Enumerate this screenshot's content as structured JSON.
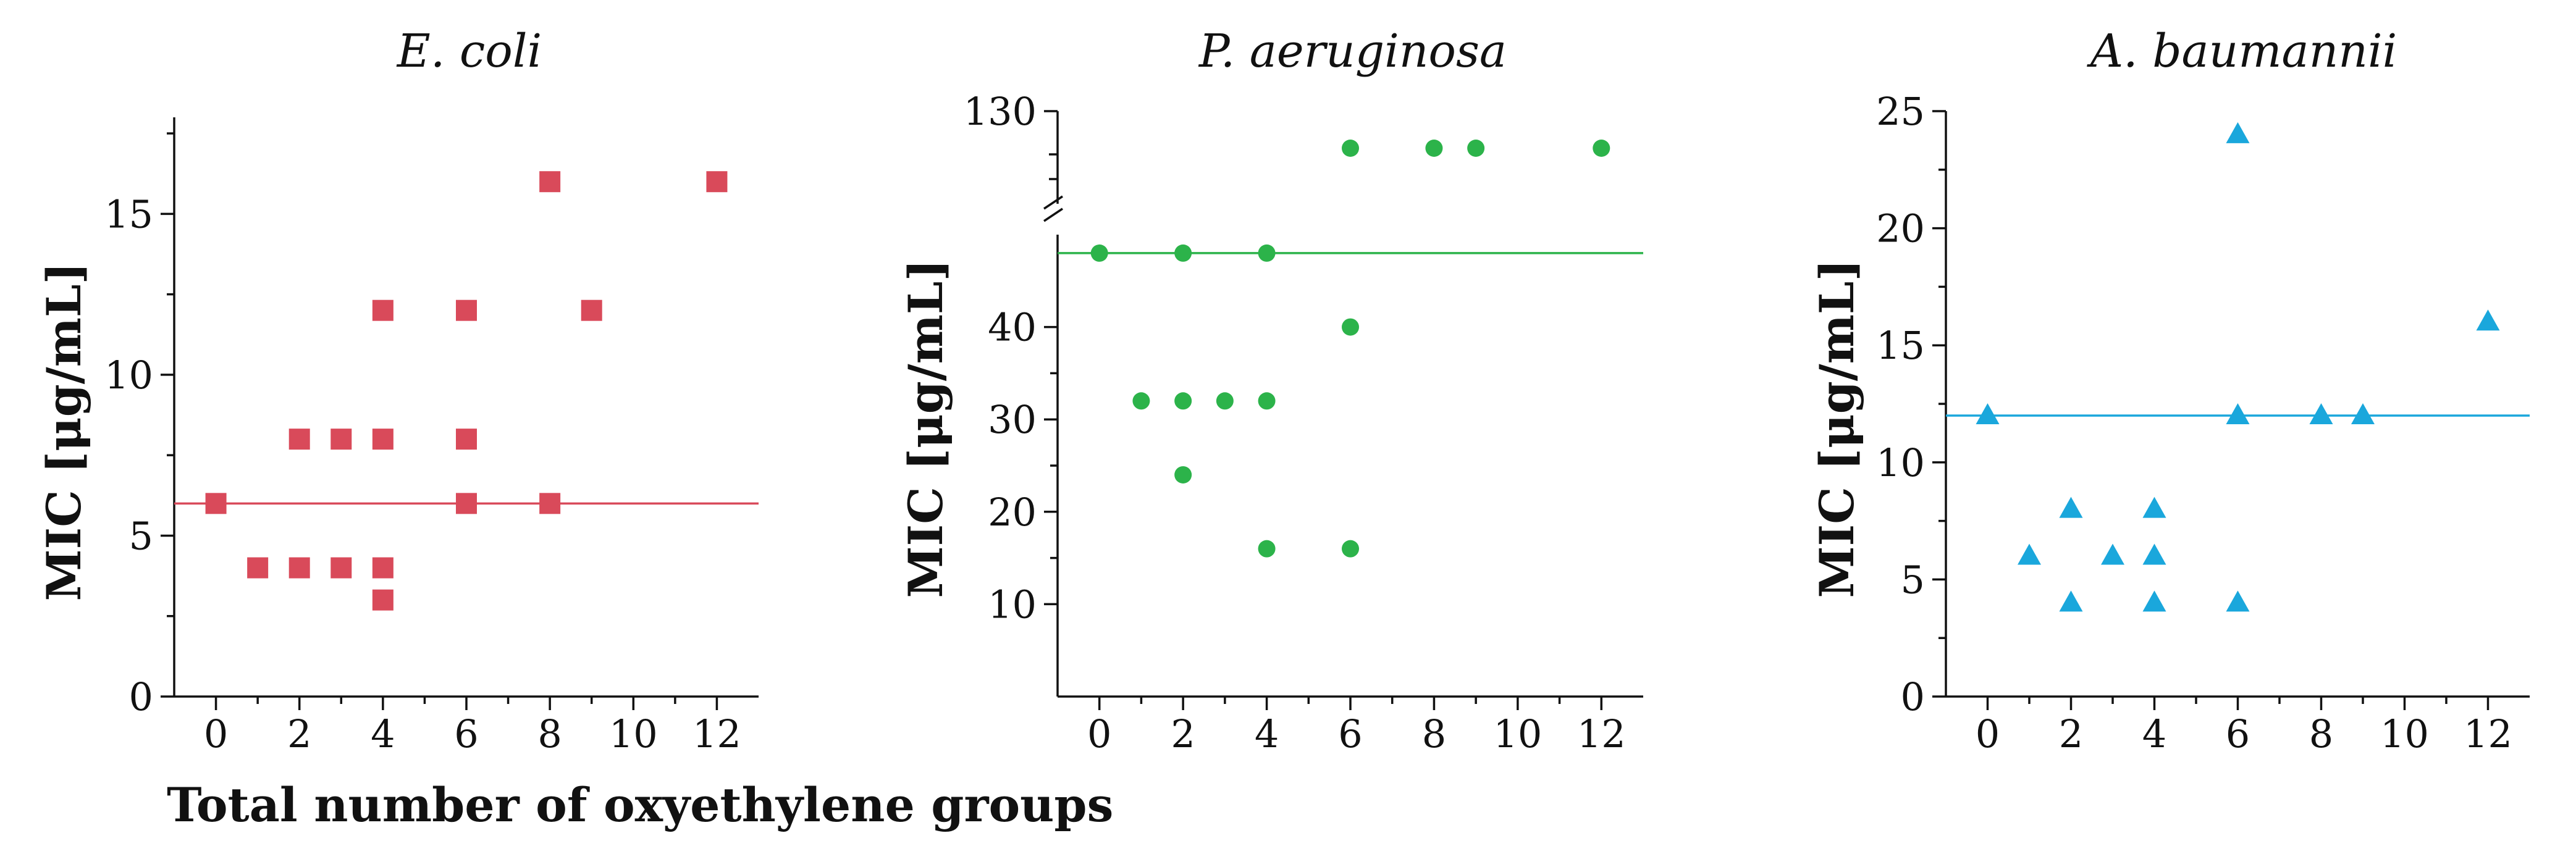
{
  "shared_xlabel": "Total number of oxyethylene groups",
  "chart_data": [
    {
      "type": "scatter",
      "title": "E. coli",
      "xlabel": "",
      "ylabel": "MIC [μg/mL]",
      "xlim": [
        -1,
        13
      ],
      "ylim": [
        0,
        18
      ],
      "xticks": [
        0,
        2,
        4,
        6,
        8,
        10,
        12
      ],
      "xtick_labels": [
        "0",
        "2",
        "4",
        "6",
        "8",
        "10",
        "12"
      ],
      "yticks": [
        0,
        5,
        10,
        15
      ],
      "ytick_labels": [
        "0",
        "5",
        "10",
        "15"
      ],
      "marker": "square",
      "color": "#d94a5a",
      "reference_line": 6,
      "points": [
        {
          "x": 0,
          "y": 6
        },
        {
          "x": 1,
          "y": 4
        },
        {
          "x": 2,
          "y": 8
        },
        {
          "x": 2,
          "y": 4
        },
        {
          "x": 3,
          "y": 8
        },
        {
          "x": 3,
          "y": 4
        },
        {
          "x": 4,
          "y": 12
        },
        {
          "x": 4,
          "y": 8
        },
        {
          "x": 4,
          "y": 4
        },
        {
          "x": 4,
          "y": 3
        },
        {
          "x": 6,
          "y": 12
        },
        {
          "x": 6,
          "y": 8
        },
        {
          "x": 6,
          "y": 6
        },
        {
          "x": 8,
          "y": 16
        },
        {
          "x": 8,
          "y": 6
        },
        {
          "x": 9,
          "y": 12
        },
        {
          "x": 12,
          "y": 16
        }
      ]
    },
    {
      "type": "scatter",
      "title": "P. aeruginosa",
      "xlabel": "",
      "ylabel": "MIC [μg/mL]",
      "xlim": [
        -1,
        13
      ],
      "ylim": [
        0,
        130
      ],
      "axis_break": [
        50,
        125
      ],
      "xticks": [
        0,
        2,
        4,
        6,
        8,
        10,
        12
      ],
      "xtick_labels": [
        "0",
        "2",
        "4",
        "6",
        "8",
        "10",
        "12"
      ],
      "yticks": [
        10,
        20,
        30,
        40,
        130
      ],
      "ytick_labels": [
        "10",
        "20",
        "30",
        "40",
        "130"
      ],
      "marker": "circle",
      "color": "#2cb34a",
      "reference_line": 48,
      "points": [
        {
          "x": 0,
          "y": 48
        },
        {
          "x": 1,
          "y": 32
        },
        {
          "x": 2,
          "y": 48
        },
        {
          "x": 2,
          "y": 32
        },
        {
          "x": 2,
          "y": 24
        },
        {
          "x": 3,
          "y": 32
        },
        {
          "x": 4,
          "y": 48
        },
        {
          "x": 4,
          "y": 32
        },
        {
          "x": 4,
          "y": 16
        },
        {
          "x": 6,
          "y": 128
        },
        {
          "x": 6,
          "y": 40
        },
        {
          "x": 6,
          "y": 16
        },
        {
          "x": 8,
          "y": 128
        },
        {
          "x": 9,
          "y": 128
        },
        {
          "x": 12,
          "y": 128
        }
      ]
    },
    {
      "type": "scatter",
      "title": "A. baumannii",
      "xlabel": "",
      "ylabel": "MIC [μg/mL]",
      "xlim": [
        -1,
        13
      ],
      "ylim": [
        0,
        25
      ],
      "xticks": [
        0,
        2,
        4,
        6,
        8,
        10,
        12
      ],
      "xtick_labels": [
        "0",
        "2",
        "4",
        "6",
        "8",
        "10",
        "12"
      ],
      "yticks": [
        0,
        5,
        10,
        15,
        20,
        25
      ],
      "ytick_labels": [
        "0",
        "5",
        "10",
        "15",
        "20",
        "25"
      ],
      "marker": "triangle",
      "color": "#1aa7dc",
      "reference_line": 12,
      "points": [
        {
          "x": 0,
          "y": 12
        },
        {
          "x": 1,
          "y": 6
        },
        {
          "x": 2,
          "y": 8
        },
        {
          "x": 2,
          "y": 4
        },
        {
          "x": 3,
          "y": 6
        },
        {
          "x": 4,
          "y": 8
        },
        {
          "x": 4,
          "y": 6
        },
        {
          "x": 4,
          "y": 4
        },
        {
          "x": 6,
          "y": 24
        },
        {
          "x": 6,
          "y": 12
        },
        {
          "x": 6,
          "y": 4
        },
        {
          "x": 8,
          "y": 12
        },
        {
          "x": 9,
          "y": 12
        },
        {
          "x": 12,
          "y": 16
        }
      ]
    }
  ]
}
